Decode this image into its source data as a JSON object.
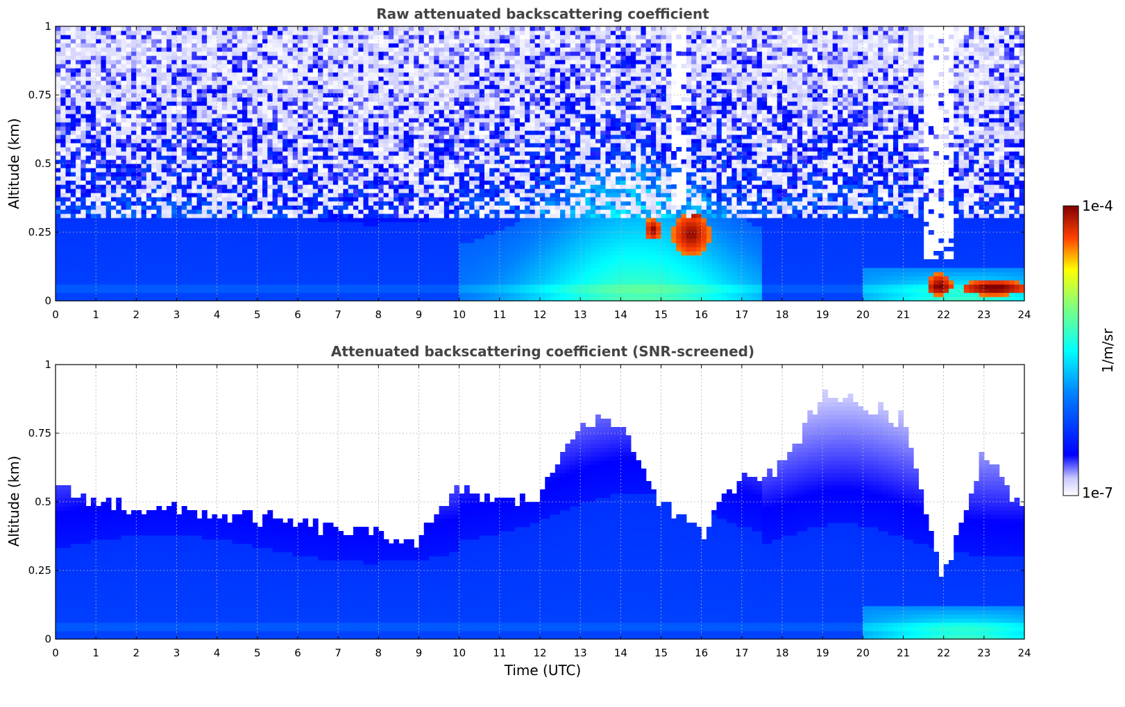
{
  "chart_data": [
    {
      "type": "heatmap",
      "title": "Raw attenuated backscattering coefficient",
      "xlabel": "",
      "ylabel": "Altitude (km)",
      "xlim": [
        0,
        24
      ],
      "ylim": [
        0,
        1
      ],
      "xticks": [
        "0",
        "1",
        "2",
        "3",
        "4",
        "5",
        "6",
        "7",
        "8",
        "9",
        "10",
        "11",
        "12",
        "13",
        "14",
        "15",
        "16",
        "17",
        "18",
        "19",
        "20",
        "21",
        "22",
        "23",
        "24"
      ],
      "yticks": [
        "0",
        "0.25",
        "0.5",
        "0.75",
        "1"
      ],
      "ytick_values": [
        0,
        0.25,
        0.5,
        0.75,
        1
      ],
      "grid": true,
      "colorscale": "jet, logarithmic",
      "screened": false,
      "features": {
        "boundary_layer_top_km": 0.35,
        "aerosol_layer": {
          "x": [
            10,
            17.5
          ],
          "ymax_km": 0.5
        },
        "dense_cloud_patches": [
          {
            "x": [
              14.6,
              15.0
            ],
            "y": [
              0.22,
              0.3
            ]
          },
          {
            "x": [
              15.3,
              16.2
            ],
            "y": [
              0.17,
              0.32
            ]
          },
          {
            "x": [
              21.6,
              22.2
            ],
            "y": [
              0.02,
              0.1
            ]
          },
          {
            "x": [
              22.5,
              24
            ],
            "y": [
              0.02,
              0.08
            ]
          }
        ],
        "clear_columns": [
          {
            "x": [
              21.55,
              22.2
            ],
            "y": [
              0.15,
              1.0
            ]
          },
          {
            "x": [
              15.3,
              15.6
            ],
            "y": [
              0.35,
              1.0
            ]
          }
        ]
      }
    },
    {
      "type": "heatmap",
      "title": "Attenuated backscattering coefficient (SNR-screened)",
      "xlabel": "Time (UTC)",
      "ylabel": "Altitude (km)",
      "xlim": [
        0,
        24
      ],
      "ylim": [
        0,
        1
      ],
      "xticks": [
        "0",
        "1",
        "2",
        "3",
        "4",
        "5",
        "6",
        "7",
        "8",
        "9",
        "10",
        "11",
        "12",
        "13",
        "14",
        "15",
        "16",
        "17",
        "18",
        "19",
        "20",
        "21",
        "22",
        "23",
        "24"
      ],
      "yticks": [
        "0",
        "0.25",
        "0.5",
        "0.75",
        "1"
      ],
      "ytick_values": [
        0,
        0.25,
        0.5,
        0.75,
        1
      ],
      "grid": true,
      "colorscale": "jet, logarithmic",
      "screened": true,
      "features": {
        "screened_top_km": [
          0.55,
          0.5,
          0.48,
          0.47,
          0.45,
          0.44,
          0.42,
          0.4,
          0.38,
          0.36,
          0.55,
          0.5,
          0.52,
          0.8,
          0.78,
          0.5,
          0.38,
          0.6,
          0.62,
          0.9,
          0.85,
          0.8,
          0.22,
          0.7,
          0.45
        ]
      }
    }
  ],
  "colorbar": {
    "label": "1/m/sr",
    "max_label": "1e-4",
    "min_label": "1e-7",
    "range": [
      1e-07,
      0.0001
    ],
    "scale": "log"
  },
  "colors": {
    "title": "#444444",
    "grid": "#b0b0b0",
    "clipped": "#000000"
  }
}
